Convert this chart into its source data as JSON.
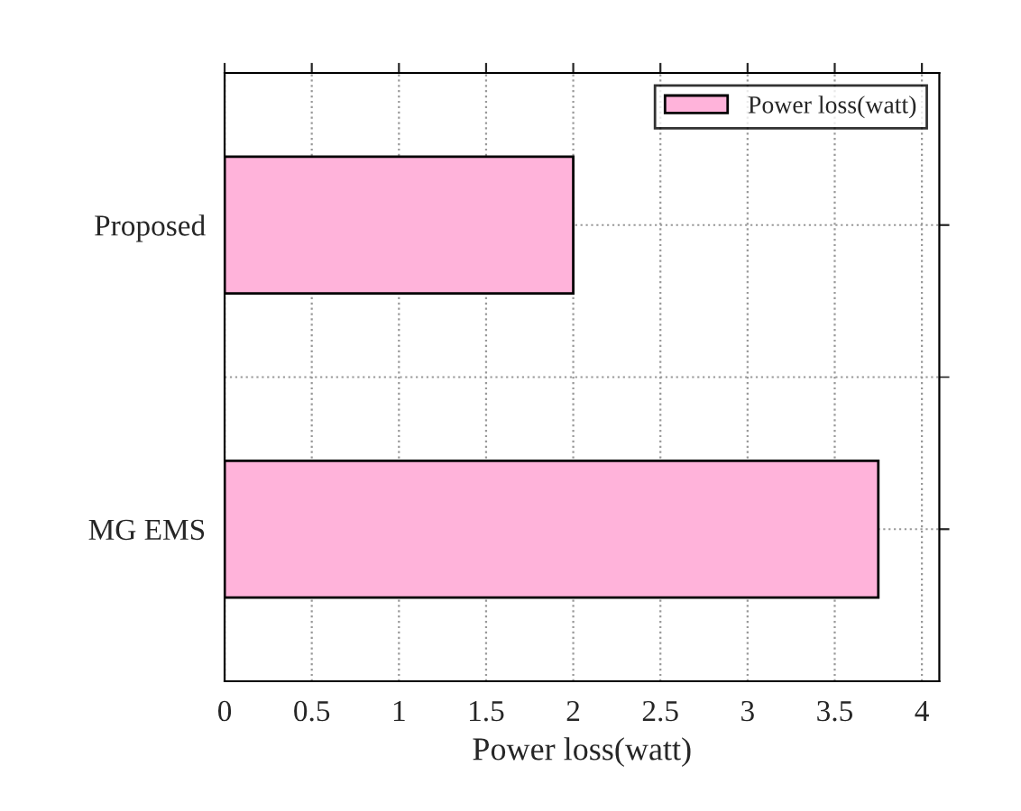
{
  "chart_data": {
    "type": "bar",
    "orientation": "horizontal",
    "xlabel": "Power loss(watt)",
    "categories": [
      "Proposed",
      "MG EMS"
    ],
    "series": [
      {
        "name": "Power loss(watt)",
        "color": "#ffb3da",
        "values": [
          2.0,
          3.75
        ]
      }
    ],
    "xlim": [
      0,
      4.1
    ],
    "xticks": [
      0,
      0.5,
      1,
      1.5,
      2,
      2.5,
      3,
      3.5,
      4
    ],
    "grid": true,
    "legend": "top right"
  }
}
